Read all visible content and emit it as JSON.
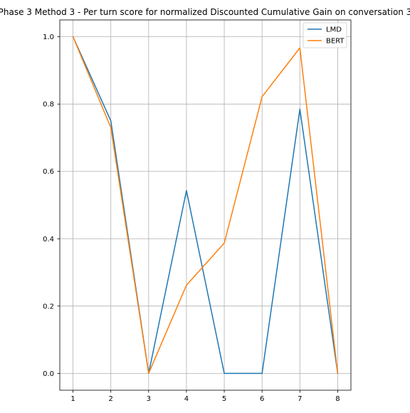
{
  "chart_data": {
    "type": "line",
    "title": "Phase 3 Method 3 - Per turn score for normalized Discounted Cumulative Gain on conversation 3",
    "xlabel": "",
    "ylabel": "",
    "x": [
      1,
      2,
      3,
      4,
      5,
      6,
      7,
      8
    ],
    "xlim": [
      0.65,
      8.35
    ],
    "ylim": [
      -0.05,
      1.05
    ],
    "xticks": [
      "1",
      "2",
      "3",
      "4",
      "5",
      "6",
      "7",
      "8"
    ],
    "yticks": [
      "0.0",
      "0.2",
      "0.4",
      "0.6",
      "0.8",
      "1.0"
    ],
    "grid": true,
    "legend_position": "top-right",
    "series": [
      {
        "name": "LMD",
        "color": "#1f77b4",
        "values": [
          1.0,
          0.75,
          0.0,
          0.543,
          0.0,
          0.0,
          0.785,
          0.0
        ]
      },
      {
        "name": "BERT",
        "color": "#ff7f0e",
        "values": [
          1.0,
          0.73,
          0.0,
          0.262,
          0.387,
          0.822,
          0.967,
          0.0
        ]
      }
    ]
  }
}
